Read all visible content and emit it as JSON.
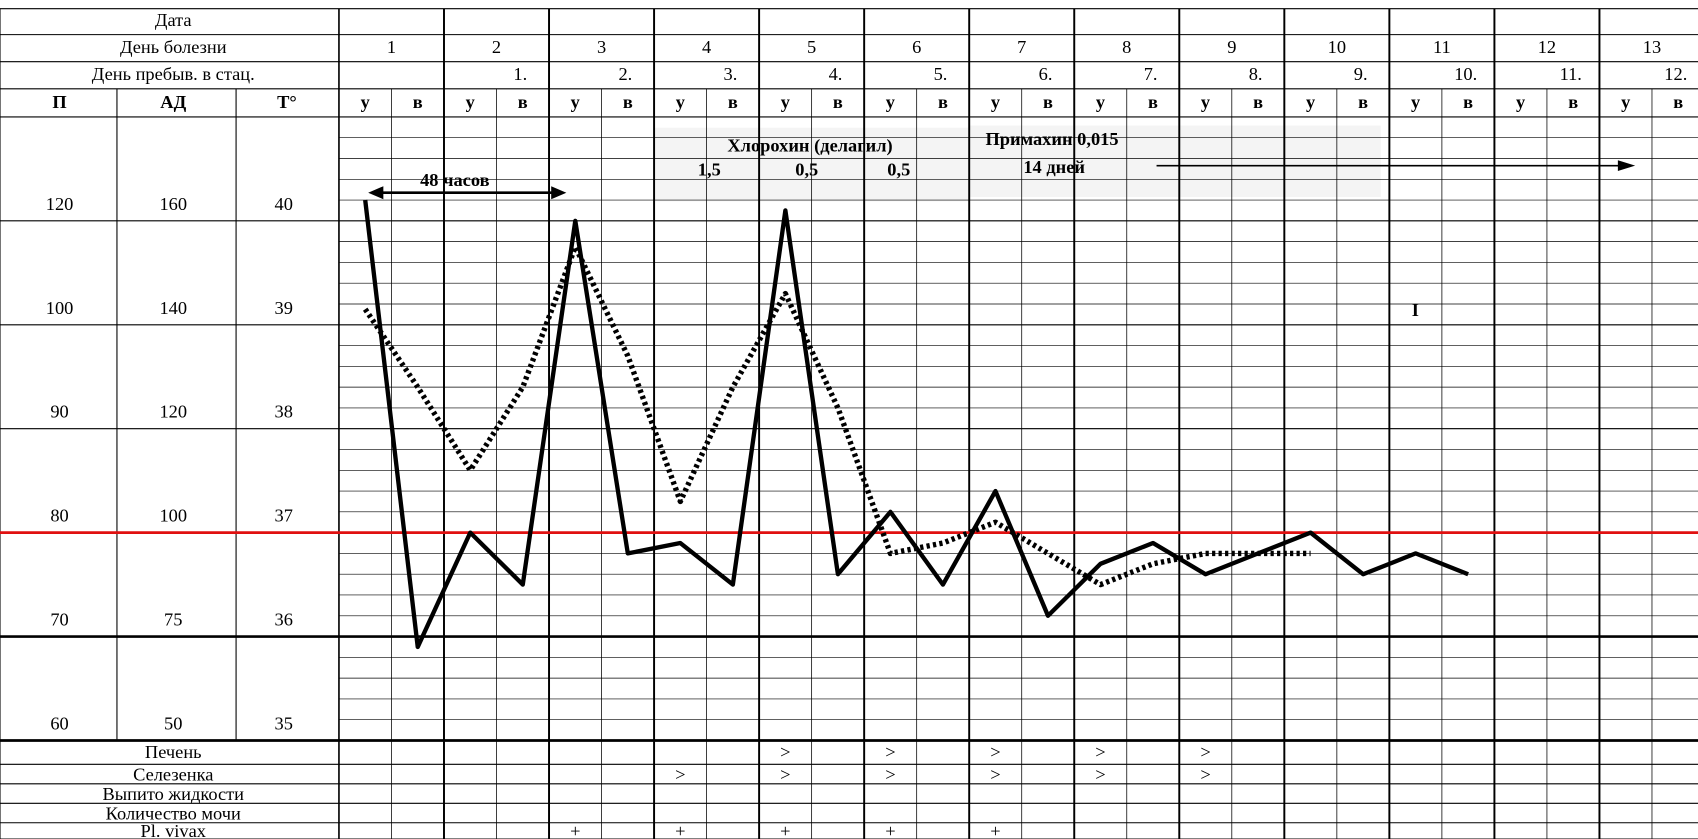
{
  "header": {
    "date": "Дата",
    "day_of_illness": "День болезни",
    "day_of_stay": "День пребыв. в стац.",
    "pulse": "П",
    "pressure": "АД",
    "temperature": "T°"
  },
  "days": [
    "1",
    "2",
    "3",
    "4",
    "5",
    "6",
    "7",
    "8",
    "9",
    "10",
    "11",
    "12",
    "13"
  ],
  "stay_days": [
    null,
    "1.",
    "2.",
    "3.",
    "4.",
    "5.",
    "6.",
    "7.",
    "8.",
    "9.",
    "10.",
    "11.",
    "12."
  ],
  "half_labels": [
    "у",
    "в"
  ],
  "chart_data": {
    "type": "line",
    "temperature_ticks": [
      35,
      36,
      37,
      38,
      39,
      40
    ],
    "pulse_ticks": [
      60,
      70,
      80,
      90,
      100,
      120
    ],
    "pressure_ticks": [
      50,
      75,
      100,
      120,
      140,
      160
    ],
    "ylim": [
      35,
      41
    ],
    "normal_line": 37,
    "series": [
      {
        "scale": "temperature",
        "style": "solid",
        "color": "#000000",
        "values": [
          40.2,
          35.9,
          37.0,
          36.5,
          40.0,
          36.8,
          36.9,
          36.5,
          40.1,
          36.6,
          37.2,
          36.5,
          37.4,
          36.2,
          36.7,
          36.9,
          36.6,
          36.8,
          37.0,
          36.6,
          36.8,
          36.6,
          null,
          null,
          null,
          null
        ]
      },
      {
        "scale": "pulse",
        "style": "dotted",
        "color": "#000000",
        "values": [
          103,
          94,
          86,
          94,
          115,
          97,
          83,
          94,
          106,
          92,
          78,
          79,
          81,
          78,
          75,
          77,
          78,
          78,
          78,
          null,
          null,
          null,
          null,
          null,
          null,
          null
        ]
      }
    ],
    "annotations": {
      "interval": "48 часов",
      "drug1": "Хлорохин (делагил)",
      "dose1": "1,5",
      "dose2": "0,5",
      "dose3": "0,5",
      "drug2": "Примахин  0,015",
      "duration": "14 дней",
      "mark": "I"
    }
  },
  "rows": [
    {
      "label": "Печень",
      "marks": [
        null,
        null,
        null,
        null,
        ">",
        ">",
        ">",
        ">",
        ">",
        null,
        null,
        null,
        null
      ]
    },
    {
      "label": "Селезенка",
      "marks": [
        null,
        null,
        null,
        ">",
        ">",
        ">",
        ">",
        ">",
        ">",
        null,
        null,
        null,
        null
      ]
    },
    {
      "label": "Выпито жидкости",
      "marks": [
        null,
        null,
        null,
        null,
        null,
        null,
        null,
        null,
        null,
        null,
        null,
        null,
        null
      ]
    },
    {
      "label": "Количество мочи",
      "marks": [
        null,
        null,
        null,
        null,
        null,
        null,
        null,
        null,
        null,
        null,
        null,
        null,
        null
      ]
    },
    {
      "label": "Pl. vivax",
      "marks": [
        null,
        null,
        "+",
        "+",
        "+",
        "+",
        "+",
        null,
        null,
        null,
        null,
        null,
        null
      ]
    }
  ]
}
